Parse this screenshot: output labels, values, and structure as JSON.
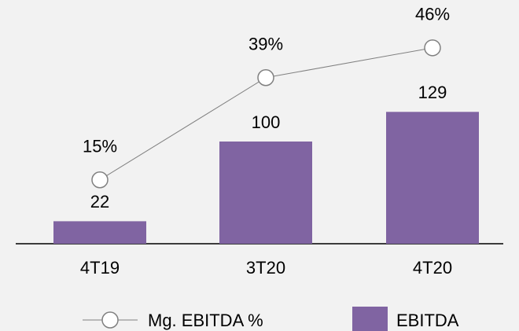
{
  "chart_data": {
    "type": "bar-line",
    "categories": [
      "4T19",
      "3T20",
      "4T20"
    ],
    "series": [
      {
        "name": "Mg. EBITDA %",
        "type": "line",
        "axis": "y2",
        "color": "#808080",
        "values": [
          15,
          39,
          46
        ],
        "value_labels": [
          "15%",
          "39%",
          "46%"
        ]
      },
      {
        "name": "EBITDA",
        "type": "bar",
        "color": "#8064a2",
        "values": [
          22,
          100,
          129
        ]
      }
    ],
    "ylim": [
      0,
      200
    ],
    "y2lim": [
      0,
      48
    ],
    "legend": "bottom"
  }
}
